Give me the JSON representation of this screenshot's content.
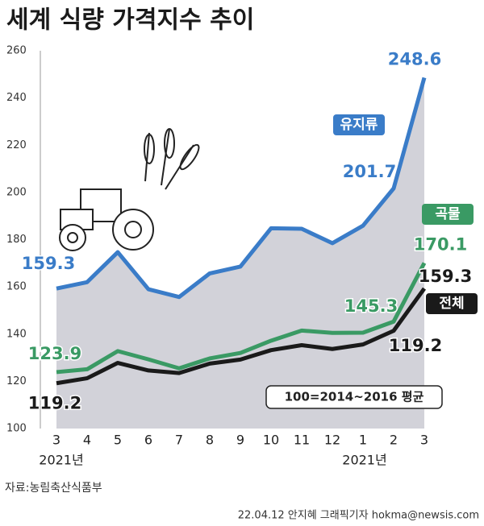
{
  "chart_data": {
    "type": "line",
    "title": "세계 식량 가격지수 추이",
    "categories": [
      "3",
      "4",
      "5",
      "6",
      "7",
      "8",
      "9",
      "10",
      "11",
      "12",
      "1",
      "2",
      "3"
    ],
    "year_labels": [
      "2021년",
      "2021년"
    ],
    "ylim": [
      100,
      260
    ],
    "yticks": [
      100,
      120,
      140,
      160,
      180,
      200,
      220,
      240,
      260
    ],
    "grid": false,
    "series": [
      {
        "name": "유지류",
        "color": "#3a7cc8",
        "values": [
          159.3,
          162.0,
          174.7,
          159.0,
          155.7,
          165.7,
          168.6,
          184.8,
          184.6,
          178.5,
          185.9,
          201.7,
          248.6
        ],
        "value_labels": [
          "159.3",
          null,
          null,
          null,
          null,
          null,
          null,
          null,
          null,
          null,
          null,
          "201.7",
          "248.6"
        ]
      },
      {
        "name": "곡물",
        "color": "#3a9a64",
        "values": [
          123.9,
          125.1,
          132.8,
          129.3,
          125.5,
          129.7,
          132.0,
          137.2,
          141.5,
          140.5,
          140.6,
          145.3,
          170.1
        ],
        "value_labels": [
          "123.9",
          null,
          null,
          null,
          null,
          null,
          null,
          null,
          null,
          null,
          null,
          "145.3",
          "170.1"
        ]
      },
      {
        "name": "전체",
        "color": "#1a1a1a",
        "values": [
          119.2,
          121.3,
          127.8,
          124.6,
          123.5,
          127.5,
          129.2,
          133.2,
          135.3,
          133.7,
          135.6,
          141.4,
          159.3
        ],
        "value_labels": [
          "119.2",
          null,
          null,
          null,
          null,
          null,
          null,
          null,
          null,
          null,
          null,
          null,
          "159.3"
        ]
      }
    ],
    "annotations": [
      "119.2",
      "100=2014~2016 평균"
    ],
    "source": "자료:농림축산식품부",
    "credit": "22.04.12 안지혜 그래픽기자 hokma@newsis.com"
  }
}
